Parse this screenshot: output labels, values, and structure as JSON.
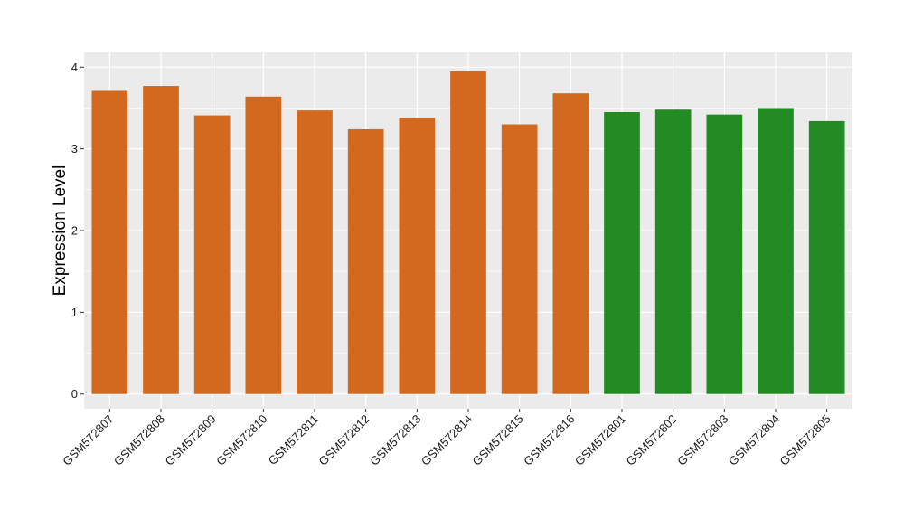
{
  "chart_data": {
    "type": "bar",
    "title": "",
    "xlabel": "",
    "ylabel": "Expression Level",
    "ylim": [
      -0.18,
      4.18
    ],
    "yticks": [
      0,
      1,
      2,
      3,
      4
    ],
    "grid": true,
    "categories": [
      "GSM572807",
      "GSM572808",
      "GSM572809",
      "GSM572810",
      "GSM572811",
      "GSM572812",
      "GSM572813",
      "GSM572814",
      "GSM572815",
      "GSM572816",
      "GSM572801",
      "GSM572802",
      "GSM572803",
      "GSM572804",
      "GSM572805"
    ],
    "values": [
      3.71,
      3.77,
      3.41,
      3.64,
      3.47,
      3.24,
      3.38,
      3.95,
      3.3,
      3.68,
      3.45,
      3.48,
      3.42,
      3.5,
      3.34
    ],
    "bar_colors": [
      "#D2691E",
      "#D2691E",
      "#D2691E",
      "#D2691E",
      "#D2691E",
      "#D2691E",
      "#D2691E",
      "#D2691E",
      "#D2691E",
      "#D2691E",
      "#228B22",
      "#228B22",
      "#228B22",
      "#228B22",
      "#228B22"
    ],
    "panel_background": "#EBEBEB",
    "grid_color": "#FFFFFF"
  }
}
